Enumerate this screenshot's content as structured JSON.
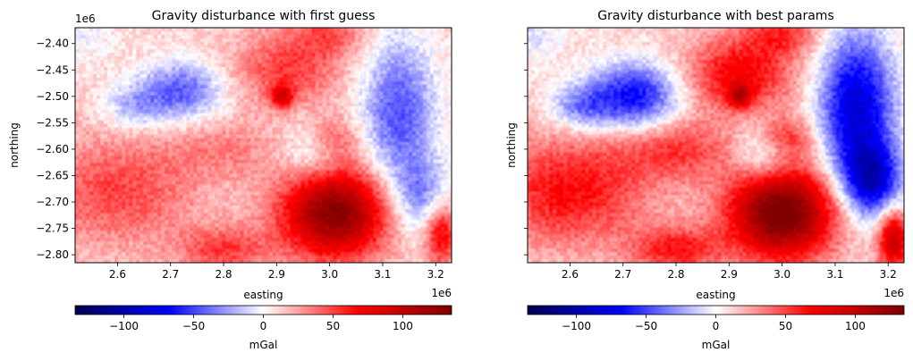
{
  "chart_data": [
    {
      "type": "heatmap",
      "title": "Gravity disturbance with first guess",
      "xlabel": "easting",
      "ylabel": "northing",
      "x_offset_label": "1e6",
      "y_offset_label": "1e6",
      "xlim": [
        2.52,
        3.23
      ],
      "ylim": [
        -2.815,
        -2.37
      ],
      "xticks": [
        2.6,
        2.7,
        2.8,
        2.9,
        3.0,
        3.1,
        3.2
      ],
      "xtick_labels": [
        "2.6",
        "2.7",
        "2.8",
        "2.9",
        "3.0",
        "3.1",
        "3.2"
      ],
      "yticks": [
        -2.4,
        -2.45,
        -2.5,
        -2.55,
        -2.6,
        -2.65,
        -2.7,
        -2.75,
        -2.8
      ],
      "ytick_labels": [
        "−2.40",
        "−2.45",
        "−2.50",
        "−2.55",
        "−2.60",
        "−2.65",
        "−2.70",
        "−2.75",
        "−2.80"
      ],
      "show_ytick_labels": true,
      "colormap": "seismic",
      "colorbar": {
        "label": "mGal",
        "range": [
          -135,
          135
        ],
        "ticks": [
          -100,
          -50,
          0,
          50,
          100
        ],
        "tick_labels": [
          "−100",
          "−50",
          "0",
          "50",
          "100"
        ],
        "orientation": "horizontal"
      },
      "anomalies": [
        {
          "x": 2.52,
          "y": -2.37,
          "sx": 0.05,
          "sy": 0.05,
          "amp": -18
        },
        {
          "x": 2.72,
          "y": -2.49,
          "sx": 0.055,
          "sy": 0.04,
          "amp": -55
        },
        {
          "x": 2.63,
          "y": -2.52,
          "sx": 0.04,
          "sy": 0.03,
          "amp": -30
        },
        {
          "x": 2.97,
          "y": -2.6,
          "sx": 0.04,
          "sy": 0.04,
          "amp": -40
        },
        {
          "x": 3.13,
          "y": -2.53,
          "sx": 0.05,
          "sy": 0.1,
          "amp": -58
        },
        {
          "x": 3.17,
          "y": -2.69,
          "sx": 0.04,
          "sy": 0.05,
          "amp": -40
        },
        {
          "x": 3.01,
          "y": -2.72,
          "sx": 0.07,
          "sy": 0.06,
          "amp": 120
        },
        {
          "x": 3.0,
          "y": -2.58,
          "sx": 0.04,
          "sy": 0.03,
          "amp": 40
        },
        {
          "x": 2.92,
          "y": -2.45,
          "sx": 0.07,
          "sy": 0.05,
          "amp": 40
        },
        {
          "x": 2.91,
          "y": -2.5,
          "sx": 0.015,
          "sy": 0.015,
          "amp": 60
        },
        {
          "x": 2.8,
          "y": -2.6,
          "sx": 0.08,
          "sy": 0.04,
          "amp": 20
        },
        {
          "x": 2.6,
          "y": -2.68,
          "sx": 0.1,
          "sy": 0.07,
          "amp": 38
        },
        {
          "x": 2.8,
          "y": -2.79,
          "sx": 0.06,
          "sy": 0.03,
          "amp": 40
        },
        {
          "x": 3.21,
          "y": -2.76,
          "sx": 0.02,
          "sy": 0.04,
          "amp": 65
        },
        {
          "x": 3.0,
          "y": -2.38,
          "sx": 0.05,
          "sy": 0.03,
          "amp": 30
        }
      ]
    },
    {
      "type": "heatmap",
      "title": "Gravity disturbance with best params",
      "xlabel": "easting",
      "ylabel": "northing",
      "x_offset_label": "1e6",
      "y_offset_label": "",
      "xlim": [
        2.52,
        3.23
      ],
      "ylim": [
        -2.815,
        -2.37
      ],
      "xticks": [
        2.6,
        2.7,
        2.8,
        2.9,
        3.0,
        3.1,
        3.2
      ],
      "xtick_labels": [
        "2.6",
        "2.7",
        "2.8",
        "2.9",
        "3.0",
        "3.1",
        "3.2"
      ],
      "yticks": [
        -2.4,
        -2.45,
        -2.5,
        -2.55,
        -2.6,
        -2.65,
        -2.7,
        -2.75,
        -2.8
      ],
      "ytick_labels": [],
      "show_ytick_labels": false,
      "colormap": "seismic",
      "colorbar": {
        "label": "mGal",
        "range": [
          -135,
          135
        ],
        "ticks": [
          -100,
          -50,
          0,
          50,
          100
        ],
        "tick_labels": [
          "−100",
          "−50",
          "0",
          "50",
          "100"
        ],
        "orientation": "horizontal"
      },
      "anomalies": [
        {
          "x": 2.52,
          "y": -2.37,
          "sx": 0.05,
          "sy": 0.05,
          "amp": -22
        },
        {
          "x": 2.72,
          "y": -2.5,
          "sx": 0.06,
          "sy": 0.045,
          "amp": -78
        },
        {
          "x": 2.62,
          "y": -2.52,
          "sx": 0.04,
          "sy": 0.03,
          "amp": -40
        },
        {
          "x": 2.97,
          "y": -2.6,
          "sx": 0.04,
          "sy": 0.04,
          "amp": -55
        },
        {
          "x": 3.14,
          "y": -2.52,
          "sx": 0.05,
          "sy": 0.1,
          "amp": -95
        },
        {
          "x": 3.17,
          "y": -2.66,
          "sx": 0.04,
          "sy": 0.05,
          "amp": -85
        },
        {
          "x": 3.0,
          "y": -2.72,
          "sx": 0.07,
          "sy": 0.06,
          "amp": 135
        },
        {
          "x": 3.0,
          "y": -2.58,
          "sx": 0.04,
          "sy": 0.03,
          "amp": 60
        },
        {
          "x": 2.92,
          "y": -2.46,
          "sx": 0.07,
          "sy": 0.05,
          "amp": 60
        },
        {
          "x": 2.92,
          "y": -2.5,
          "sx": 0.015,
          "sy": 0.015,
          "amp": 60
        },
        {
          "x": 2.8,
          "y": -2.6,
          "sx": 0.08,
          "sy": 0.04,
          "amp": 40
        },
        {
          "x": 2.6,
          "y": -2.68,
          "sx": 0.1,
          "sy": 0.07,
          "amp": 55
        },
        {
          "x": 2.8,
          "y": -2.79,
          "sx": 0.06,
          "sy": 0.03,
          "amp": 50
        },
        {
          "x": 3.21,
          "y": -2.77,
          "sx": 0.02,
          "sy": 0.04,
          "amp": 90
        },
        {
          "x": 3.0,
          "y": -2.38,
          "sx": 0.05,
          "sy": 0.03,
          "amp": 40
        }
      ]
    }
  ]
}
